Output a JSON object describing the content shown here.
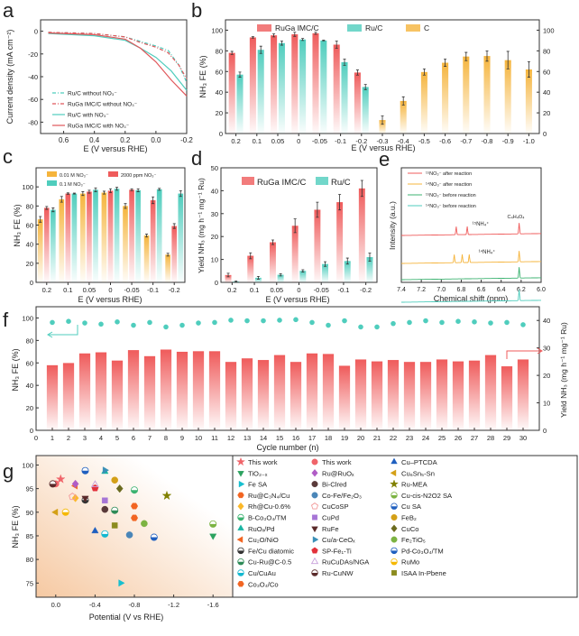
{
  "colors": {
    "red": "#ef5b5b",
    "teal": "#4fcdbd",
    "orange": "#f5b43c",
    "green": "#3cb371",
    "text": "#222222"
  },
  "chart_data": [
    {
      "panel": "a",
      "type": "line",
      "xlabel": "E (V versus RHE)",
      "ylabel": "Current density (mA cm⁻²)",
      "xlim": [
        0.75,
        -0.2
      ],
      "ylim": [
        -90,
        10
      ],
      "xticks": [
        0.6,
        0.4,
        0.2,
        0.0,
        -0.2
      ],
      "xticklabels": [
        "0.6",
        "0.4",
        "0.2",
        "0.0",
        "-0.2"
      ],
      "yticks": [
        0,
        -20,
        -40,
        -60,
        -80
      ],
      "series": [
        {
          "name": "Ru/C without NO₃⁻",
          "color": "#4fcdbd",
          "style": "dashdot",
          "x": [
            0.7,
            0.4,
            0.2,
            0.1,
            0.0,
            -0.08,
            -0.15,
            -0.2
          ],
          "y": [
            -1,
            -2,
            -5,
            -9,
            -13,
            -17,
            -30,
            -45
          ]
        },
        {
          "name": "RuGa IMC/C without NO₃⁻",
          "color": "#e0575b",
          "style": "dashdot",
          "x": [
            0.7,
            0.4,
            0.2,
            0.1,
            0.0,
            -0.08,
            -0.15,
            -0.2
          ],
          "y": [
            -1,
            -2,
            -5,
            -10,
            -14,
            -19,
            -30,
            -42
          ]
        },
        {
          "name": "Ru/C with NO₃⁻",
          "color": "#4fcdbd",
          "style": "solid",
          "x": [
            0.7,
            0.4,
            0.2,
            0.1,
            0.0,
            -0.1,
            -0.2
          ],
          "y": [
            -2,
            -4,
            -8,
            -15,
            -23,
            -35,
            -52
          ]
        },
        {
          "name": "RuGa IMC/C with NO₃⁻",
          "color": "#e0575b",
          "style": "solid",
          "x": [
            0.7,
            0.4,
            0.2,
            0.1,
            0.0,
            -0.1,
            -0.2
          ],
          "y": [
            -1.5,
            -3,
            -7,
            -15,
            -27,
            -43,
            -57
          ]
        }
      ]
    },
    {
      "panel": "b",
      "type": "bar",
      "xlabel": "E (V versus RHE)",
      "ylabel": "NH₃ FE (%)",
      "categories": [
        "0.2",
        "0.1",
        "0.05",
        "0",
        "-0.05",
        "-0.1",
        "-0.2",
        "-0.3",
        "-0.4",
        "-0.5",
        "-0.6",
        "-0.7",
        "-0.8",
        "-0.9",
        "-1.0"
      ],
      "ylim": [
        0,
        110
      ],
      "yticks": [
        0,
        20,
        40,
        60,
        80,
        100
      ],
      "right_axis_ticks": [
        0,
        20,
        40,
        60,
        80,
        100
      ],
      "series": [
        {
          "name": "RuGa IMC/C",
          "color": "#ef5b5b",
          "values": [
            78,
            93,
            95,
            96,
            97,
            86,
            59,
            null,
            null,
            null,
            null,
            null,
            null,
            null,
            null
          ],
          "errors": [
            1.5,
            0.7,
            1.5,
            2,
            1,
            3.5,
            2.5,
            null,
            null,
            null,
            null,
            null,
            null,
            null,
            null
          ]
        },
        {
          "name": "Ru/C",
          "color": "#4fcdbd",
          "values": [
            57,
            81,
            87.5,
            91,
            90,
            69,
            45,
            null,
            null,
            null,
            null,
            null,
            null,
            null,
            null
          ],
          "errors": [
            2.5,
            3.5,
            2,
            1,
            0.3,
            3,
            2.5,
            null,
            null,
            null,
            null,
            null,
            null,
            null,
            null
          ]
        },
        {
          "name": "C",
          "color": "#f5b43c",
          "values": [
            null,
            null,
            null,
            null,
            null,
            null,
            null,
            13,
            31.5,
            59.5,
            68.5,
            74.5,
            75,
            71,
            62
          ],
          "errors": [
            null,
            null,
            null,
            null,
            null,
            null,
            null,
            4,
            4,
            3,
            3.5,
            4,
            5,
            8.5,
            7.5
          ]
        }
      ]
    },
    {
      "panel": "c",
      "type": "bar",
      "xlabel": "E (V versus RHE)",
      "ylabel": "NH₃ FE (%)",
      "categories": [
        "0.2",
        "0.1",
        "0.05",
        "0",
        "-0.05",
        "-0.1",
        "-0.2"
      ],
      "ylim": [
        0,
        120
      ],
      "yticks": [
        0,
        20,
        40,
        60,
        80,
        100
      ],
      "series": [
        {
          "name": "0.01 M NO₃⁻",
          "color": "#f5b43c",
          "values": [
            66,
            87,
            93,
            94,
            80,
            49,
            29
          ],
          "errors": [
            3,
            3,
            2,
            1.5,
            2.5,
            1.5,
            1.5
          ]
        },
        {
          "name": "2000 ppm NO₃⁻",
          "color": "#ef5b5b",
          "values": [
            78,
            93,
            95,
            96,
            97,
            86,
            59
          ],
          "errors": [
            1.5,
            0.7,
            1.5,
            2,
            1,
            3.5,
            2.5
          ]
        },
        {
          "name": "0.1 M NO₃⁻",
          "color": "#4fcdbd",
          "values": [
            76,
            93,
            97,
            98,
            96.5,
            97.5,
            93
          ],
          "errors": [
            2,
            0.5,
            2,
            1.5,
            1.5,
            1,
            3
          ]
        }
      ]
    },
    {
      "panel": "d",
      "type": "bar",
      "xlabel": "E (V versus RHE)",
      "ylabel": "Yield NH₃ (mg h⁻¹ mg⁻¹ Ru)",
      "categories": [
        "0.2",
        "0.1",
        "0.05",
        "0",
        "-0.05",
        "-0.1",
        "-0.2"
      ],
      "ylim": [
        0,
        50
      ],
      "yticks": [
        0,
        10,
        20,
        30,
        40,
        50
      ],
      "series": [
        {
          "name": "RuGa IMC/C",
          "color": "#ef5b5b",
          "values": [
            3.2,
            11.6,
            17.5,
            24.7,
            31.7,
            35,
            41
          ],
          "errors": [
            0.8,
            1.3,
            1,
            3,
            3.3,
            3.4,
            3.5
          ]
        },
        {
          "name": "Ru/C",
          "color": "#4fcdbd",
          "values": [
            0.4,
            2,
            3.3,
            5,
            8,
            9.3,
            11
          ],
          "errors": [
            0.2,
            0.6,
            0.5,
            0.5,
            1,
            1.3,
            1.8
          ]
        }
      ]
    },
    {
      "panel": "e",
      "type": "line",
      "xlabel": "Chemical shift (ppm)",
      "ylabel": "Intensity (a.u.)",
      "xlim": [
        7.4,
        6.0
      ],
      "xticks": [
        7.4,
        7.2,
        7.0,
        6.8,
        6.6,
        6.4,
        6.2,
        6.0
      ],
      "xticklabels": [
        "7.4",
        "7.2",
        "7.0",
        "6.8",
        "6.6",
        "6.4",
        "6.2",
        "6.0"
      ],
      "annotations": {
        "ref": "C₄H₄O₄",
        "n15": "¹⁵NH₄⁺",
        "n14": "¹⁴NH₄⁺"
      },
      "series": [
        {
          "name": "¹⁵NO₃⁻ after reaction",
          "color": "#ef5b5b",
          "peaks": [
            6.85,
            6.74,
            6.22
          ]
        },
        {
          "name": "¹⁴NO₃⁻ after reaction",
          "color": "#f5b43c",
          "peaks": [
            6.87,
            6.79,
            6.72,
            6.22
          ]
        },
        {
          "name": "¹⁵NO₃⁻ before reaction",
          "color": "#3cb371",
          "peaks": [
            6.22
          ]
        },
        {
          "name": "¹⁴NO₃⁻ before reaction",
          "color": "#4fcdbd",
          "peaks": [
            6.22
          ]
        }
      ]
    },
    {
      "panel": "f",
      "type": "bar+scatter",
      "xlabel": "Cycle number (n)",
      "ylabel": "NH₃ FE (%)",
      "ylabel_right": "Yield NH₃ (mg h⁻¹ mg⁻¹ Ru)",
      "xlim": [
        0,
        31
      ],
      "ylim": [
        0,
        110
      ],
      "ylim_right": [
        0,
        45
      ],
      "yticks": [
        0,
        20,
        40,
        60,
        80,
        100
      ],
      "yticks_right": [
        0,
        10,
        20,
        30,
        40
      ],
      "cycles": [
        1,
        2,
        3,
        4,
        5,
        6,
        7,
        8,
        9,
        10,
        11,
        12,
        13,
        14,
        15,
        16,
        17,
        18,
        19,
        20,
        21,
        22,
        23,
        24,
        25,
        26,
        27,
        28,
        29,
        30
      ],
      "fe": [
        96,
        97,
        95.5,
        94.5,
        96.5,
        93.5,
        96,
        92,
        93.5,
        95.5,
        96,
        98,
        97.5,
        97.5,
        98,
        98.5,
        96,
        93.5,
        97.5,
        92,
        92,
        95,
        96,
        97.5,
        96,
        97,
        96.5,
        95.5,
        96,
        94
      ],
      "yield": [
        23.7,
        24.5,
        28.0,
        28.4,
        25.4,
        29.2,
        27.0,
        29.4,
        28.6,
        28.8,
        28.8,
        24.9,
        26.2,
        25.6,
        27.4,
        24.9,
        28.0,
        27.8,
        23.5,
        25.8,
        25.1,
        25.6,
        24.9,
        24.9,
        25.8,
        25.1,
        25.4,
        27.4,
        23.3,
        25.8
      ]
    },
    {
      "panel": "g",
      "type": "scatter",
      "xlabel": "Potential (V vs RHE)",
      "ylabel": "NH₃ FE (%)",
      "xlim": [
        0.2,
        -1.8
      ],
      "ylim": [
        72,
        102
      ],
      "xticks": [
        0.0,
        -0.4,
        -0.8,
        -1.2,
        -1.6
      ],
      "xticklabels": [
        "0.0",
        "-0.4",
        "-0.8",
        "-1.2",
        "-1.6"
      ],
      "yticks": [
        75,
        80,
        85,
        90,
        95,
        100
      ],
      "legend_columns": [
        [
          {
            "name": "This work",
            "marker": "star",
            "color": "#f0646a",
            "x": -0.05,
            "y": 97
          },
          {
            "name": "TiO₂₋ₓ",
            "marker": "tridown",
            "color": "#2ca25f",
            "x": -1.6,
            "y": 85
          },
          {
            "name": "Fe SA",
            "marker": "triright",
            "color": "#17bfcf",
            "x": -0.66,
            "y": 75
          },
          {
            "name": "Ru@C₃N₄/Cu",
            "marker": "hexagon",
            "color": "#f26522",
            "x": -0.8,
            "y": 91.3
          },
          {
            "name": "Rh@Cu-0.6%",
            "marker": "diamond",
            "color": "#fbb829",
            "x": -0.2,
            "y": 93
          },
          {
            "name": "B-Co₃O₄/TM",
            "marker": "half",
            "color": "#3cb371",
            "x": -0.8,
            "y": 94.7
          },
          {
            "name": "RuOₓ/Pd",
            "marker": "triup",
            "color": "#1ab5a3",
            "x": -0.5,
            "y": 98.6
          },
          {
            "name": "Cu₂O/NiO",
            "marker": "trileft",
            "color": "#f26522",
            "x": -0.2,
            "y": 95.6
          },
          {
            "name": "Fe/Cu diatomic",
            "marker": "half",
            "color": "#333333",
            "x": -0.3,
            "y": 92.6
          },
          {
            "name": "Cu-Ru@C-0.5",
            "marker": "half",
            "color": "#2e8b57",
            "x": -0.6,
            "y": 90.4
          },
          {
            "name": "Cu/CuAu",
            "marker": "half",
            "color": "#12b8d0",
            "x": -0.5,
            "y": 85.4
          },
          {
            "name": "Co₃O₄/Co",
            "marker": "hexagon",
            "color": "#f26522",
            "x": -0.8,
            "y": 88.8
          }
        ],
        [
          {
            "name": "This work",
            "marker": "circle",
            "color": "#f0646a",
            "x": 0.0,
            "y": 96
          },
          {
            "name": "Ru@RuOₓ",
            "marker": "diamond",
            "color": "#b05cc6",
            "x": -0.2,
            "y": 96
          },
          {
            "name": "Bi-Clred",
            "marker": "circle",
            "color": "#5a3a3a",
            "x": -0.5,
            "y": 90.6
          },
          {
            "name": "Co-Fe/Fe₂O₃",
            "marker": "circle",
            "color": "#4a86b8",
            "x": -0.75,
            "y": 85.2
          },
          {
            "name": "CuCoSP",
            "marker": "pentagon-open",
            "color": "#f29a9a",
            "x": -0.17,
            "y": 93.3
          },
          {
            "name": "CuPd",
            "marker": "square",
            "color": "#a675d6",
            "x": -0.5,
            "y": 92.5
          },
          {
            "name": "RuFe",
            "marker": "tridown",
            "color": "#5a2a2a",
            "x": -0.3,
            "y": 93
          },
          {
            "name": "Cu/a-CeOₓ",
            "marker": "triright",
            "color": "#3a8fb7",
            "x": -0.5,
            "y": 98.9
          },
          {
            "name": "SP-Fe₁-Ti",
            "marker": "pentagon",
            "color": "#e2303a",
            "x": -0.4,
            "y": 95.1
          },
          {
            "name": "RuCuDAs/NGA",
            "marker": "triup-open",
            "color": "#c9a0dc",
            "x": -0.4,
            "y": 95.8
          },
          {
            "name": "Ru-CuNW",
            "marker": "half",
            "color": "#5a2a2a",
            "x": 0.03,
            "y": 96
          }
        ],
        [
          {
            "name": "Cu–PTCDA",
            "marker": "triup",
            "color": "#1f5fbf",
            "x": -0.4,
            "y": 86
          },
          {
            "name": "Cu₆Sn₅-Sn",
            "marker": "trileft",
            "color": "#d4a017",
            "x": 0.0,
            "y": 90
          },
          {
            "name": "Ru-MEA",
            "marker": "star",
            "color": "#808000",
            "x": -1.13,
            "y": 93.5
          },
          {
            "name": "Cu-cis-N2O2 SA",
            "marker": "half",
            "color": "#7cb342",
            "x": -1.6,
            "y": 87.5
          },
          {
            "name": "Cu SA",
            "marker": "half",
            "color": "#1f5fbf",
            "x": -1.0,
            "y": 84.7
          },
          {
            "name": "FeB₂",
            "marker": "circle",
            "color": "#d4a017",
            "x": -0.6,
            "y": 96.8
          },
          {
            "name": "CuCo",
            "marker": "diamond",
            "color": "#6b6b1f",
            "x": -0.65,
            "y": 95
          },
          {
            "name": "Fe₂TiO₅",
            "marker": "circle",
            "color": "#7cb342",
            "x": -0.9,
            "y": 87.6
          },
          {
            "name": "Pd-Co₃O₄/TM",
            "marker": "half",
            "color": "#1f5fbf",
            "x": -0.3,
            "y": 98.8
          },
          {
            "name": "RuMo",
            "marker": "half",
            "color": "#f5b800",
            "x": -0.1,
            "y": 90
          },
          {
            "name": "ISAA In-Pbene",
            "marker": "square",
            "color": "#8b8b1f",
            "x": -0.6,
            "y": 87.2
          }
        ]
      ]
    }
  ]
}
